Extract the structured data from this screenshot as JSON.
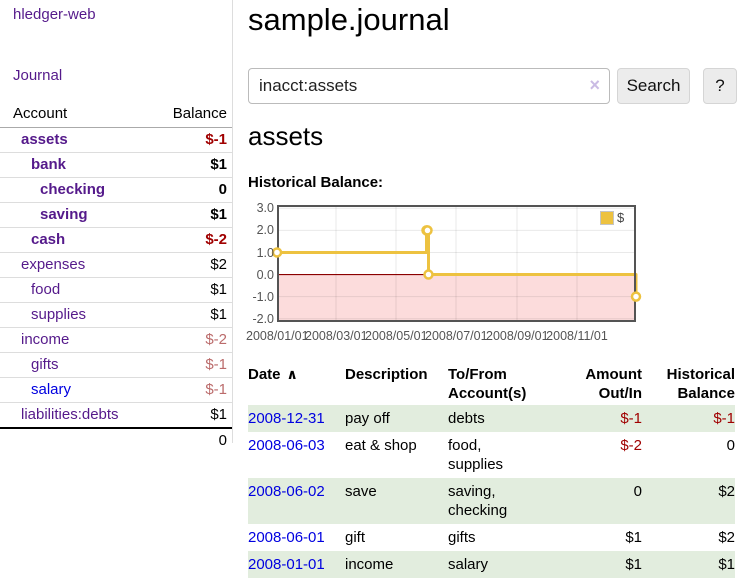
{
  "sidebar": {
    "brand": "hledger-web",
    "journal_link": "Journal",
    "accounts": {
      "col_account": "Account",
      "col_balance": "Balance",
      "rows": [
        {
          "name": "assets",
          "depth": 1,
          "bold": true,
          "balance": "$-1",
          "neg": "strong",
          "link": "purple"
        },
        {
          "name": "bank",
          "depth": 2,
          "bold": true,
          "balance": "$1",
          "neg": "",
          "link": "purple"
        },
        {
          "name": "checking",
          "depth": 3,
          "bold": true,
          "balance": "0",
          "neg": "",
          "link": "purple"
        },
        {
          "name": "saving",
          "depth": 3,
          "bold": true,
          "balance": "$1",
          "neg": "",
          "link": "purple"
        },
        {
          "name": "cash",
          "depth": 2,
          "bold": true,
          "balance": "$-2",
          "neg": "strong",
          "link": "purple"
        },
        {
          "name": "expenses",
          "depth": 1,
          "bold": false,
          "balance": "$2",
          "neg": "",
          "link": "purple"
        },
        {
          "name": "food",
          "depth": 2,
          "bold": false,
          "balance": "$1",
          "neg": "",
          "link": "purple"
        },
        {
          "name": "supplies",
          "depth": 2,
          "bold": false,
          "balance": "$1",
          "neg": "",
          "link": "purple"
        },
        {
          "name": "income",
          "depth": 1,
          "bold": false,
          "balance": "$-2",
          "neg": "soft",
          "link": "purple"
        },
        {
          "name": "gifts",
          "depth": 2,
          "bold": false,
          "balance": "$-1",
          "neg": "soft",
          "link": "purple"
        },
        {
          "name": "salary",
          "depth": 2,
          "bold": false,
          "balance": "$-1",
          "neg": "soft",
          "link": "blue"
        },
        {
          "name": "liabilities:debts",
          "depth": 1,
          "bold": false,
          "balance": "$1",
          "neg": "",
          "link": "purple"
        }
      ],
      "total": "0"
    }
  },
  "header": {
    "title": "sample.journal"
  },
  "search": {
    "value": "inacct:assets",
    "clear_icon": "×",
    "button": "Search",
    "help": "?"
  },
  "account_page": {
    "heading": "assets",
    "section_label": "Historical Balance:"
  },
  "chart_data": {
    "type": "line",
    "step": true,
    "title": "Historical Balance:",
    "x_range": [
      "2008-01-01",
      "2008-12-31"
    ],
    "ylim": [
      -2,
      3
    ],
    "y_ticks": [
      {
        "v": 3,
        "label": "3.0"
      },
      {
        "v": 2,
        "label": "2.0"
      },
      {
        "v": 1,
        "label": "1.0"
      },
      {
        "v": 0,
        "label": "0.0"
      },
      {
        "v": -1,
        "label": "-1.0"
      },
      {
        "v": -2,
        "label": "-2.0"
      }
    ],
    "x_ticks": [
      {
        "date": "2008-01-01",
        "label": "2008/01/01"
      },
      {
        "date": "2008-03-01",
        "label": "2008/03/01"
      },
      {
        "date": "2008-05-01",
        "label": "2008/05/01"
      },
      {
        "date": "2008-07-01",
        "label": "2008/07/01"
      },
      {
        "date": "2008-09-01",
        "label": "2008/09/01"
      },
      {
        "date": "2008-11-01",
        "label": "2008/11/01"
      }
    ],
    "series": [
      {
        "name": "$",
        "color": "#edc240",
        "points": [
          {
            "date": "2008-01-01",
            "value": 1
          },
          {
            "date": "2008-06-01",
            "value": 2
          },
          {
            "date": "2008-06-02",
            "value": 2
          },
          {
            "date": "2008-06-03",
            "value": 0
          },
          {
            "date": "2008-12-31",
            "value": -1
          }
        ]
      }
    ],
    "negative_region_color": "#fcdcdc",
    "zero_line_color": "#8b0000",
    "grid": true,
    "legend": {
      "label": "$",
      "position": "top-right"
    }
  },
  "register": {
    "columns": [
      "Date",
      "Description",
      "To/From Account(s)",
      "Amount Out/In",
      "Historical Balance"
    ],
    "sort_icon": "∧",
    "rows": [
      {
        "date": "2008-12-31",
        "description": "pay off",
        "accounts": "debts",
        "amount": "$-1",
        "amount_negative": true,
        "balance": "$-1",
        "balance_negative": true
      },
      {
        "date": "2008-06-03",
        "description": "eat & shop",
        "accounts": "food, supplies",
        "amount": "$-2",
        "amount_negative": true,
        "balance": "0",
        "balance_negative": false
      },
      {
        "date": "2008-06-02",
        "description": "save",
        "accounts": "saving, checking",
        "amount": "0",
        "amount_negative": false,
        "balance": "$2",
        "balance_negative": false
      },
      {
        "date": "2008-06-01",
        "description": "gift",
        "accounts": "gifts",
        "amount": "$1",
        "amount_negative": false,
        "balance": "$2",
        "balance_negative": false
      },
      {
        "date": "2008-01-01",
        "description": "income",
        "accounts": "salary",
        "amount": "$1",
        "amount_negative": false,
        "balance": "$1",
        "balance_negative": false
      }
    ]
  }
}
